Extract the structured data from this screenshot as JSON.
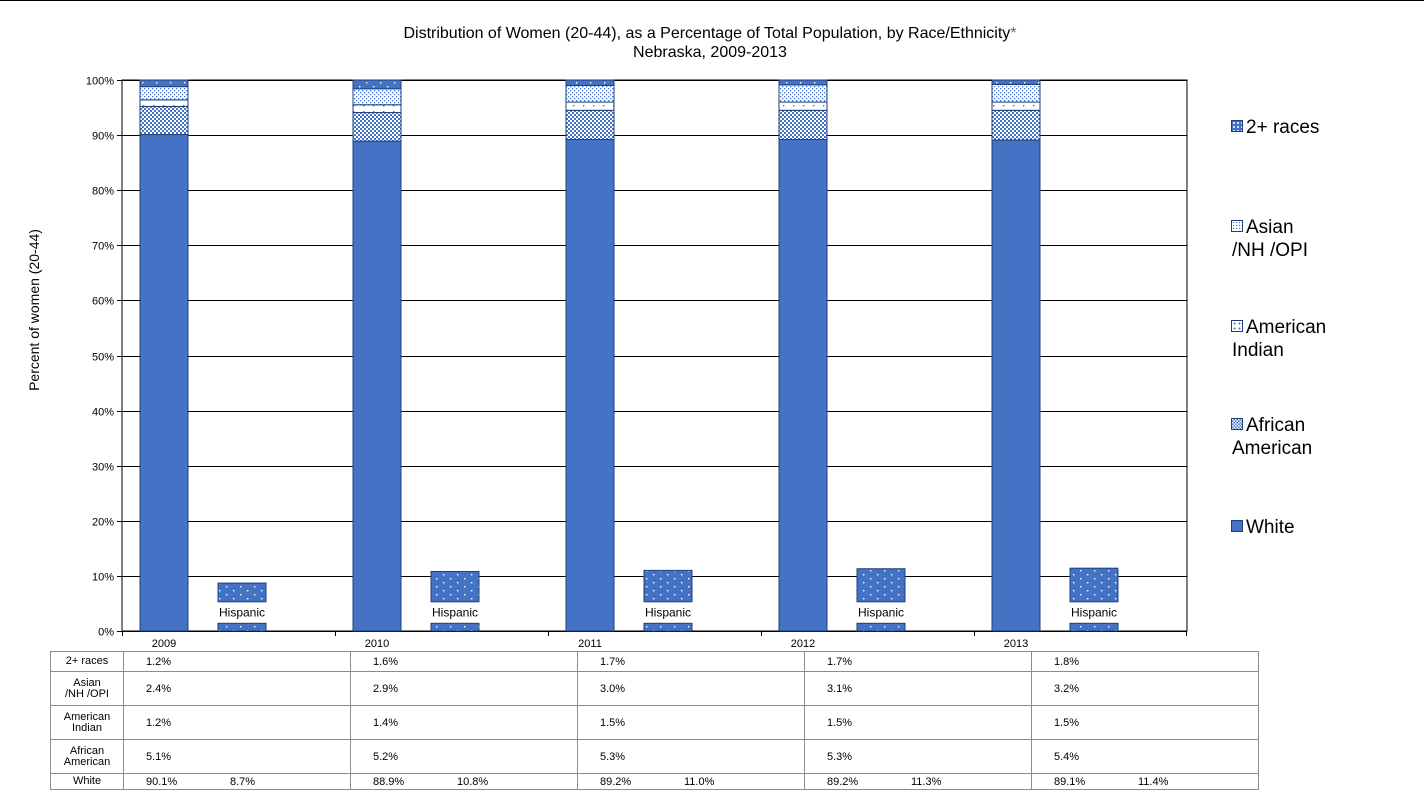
{
  "chart_data": {
    "type": "bar",
    "title": "Distribution of Women (20-44), as a Percentage of Total Population, by Race/Ethnicity",
    "title_marker": "*",
    "subtitle": "Nebraska, 2009-2013",
    "ylabel": "Percent of women (20-44)",
    "ylim": [
      0,
      100
    ],
    "yticks": [
      "0%",
      "10%",
      "20%",
      "30%",
      "40%",
      "50%",
      "60%",
      "70%",
      "80%",
      "90%",
      "100%"
    ],
    "categories": [
      "2009",
      "2010",
      "2011",
      "2012",
      "2013"
    ],
    "stacked": true,
    "series": [
      {
        "name": "White",
        "values": [
          90.1,
          88.9,
          89.2,
          89.2,
          89.1
        ]
      },
      {
        "name": "African American",
        "values": [
          5.1,
          5.2,
          5.3,
          5.3,
          5.4
        ]
      },
      {
        "name": "American Indian",
        "values": [
          1.2,
          1.4,
          1.5,
          1.5,
          1.5
        ]
      },
      {
        "name": "Asian /NH /OPI",
        "values": [
          2.4,
          2.9,
          3.0,
          3.1,
          3.2
        ]
      },
      {
        "name": "2+ races",
        "values": [
          1.2,
          1.6,
          1.7,
          1.7,
          1.8
        ]
      }
    ],
    "hispanic_values": [
      8.7,
      10.8,
      11.0,
      11.3,
      11.4
    ],
    "hispanic_label": "Hispanic",
    "grid": true,
    "legend_position": "right",
    "legend_order": [
      "2+ races",
      "Asian /NH /OPI",
      "American Indian",
      "African American",
      "White"
    ],
    "colors": {
      "white": "#4472c4",
      "bar_edge": "#1f3f7a",
      "pattern_bg": "#ffffff"
    }
  },
  "legend": [
    {
      "lines": [
        "2+ races"
      ]
    },
    {
      "lines": [
        "Asian",
        "/NH /OPI"
      ]
    },
    {
      "lines": [
        "American",
        "Indian"
      ]
    },
    {
      "lines": [
        "African",
        "American"
      ]
    },
    {
      "lines": [
        "White"
      ]
    }
  ],
  "table": {
    "rows": [
      {
        "label": [
          "2+ races"
        ],
        "values": [
          "1.2%",
          "1.6%",
          "1.7%",
          "1.7%",
          "1.8%"
        ]
      },
      {
        "label": [
          "Asian",
          "/NH /OPI"
        ],
        "values": [
          "2.4%",
          "2.9%",
          "3.0%",
          "3.1%",
          "3.2%"
        ]
      },
      {
        "label": [
          "American",
          "Indian"
        ],
        "values": [
          "1.2%",
          "1.4%",
          "1.5%",
          "1.5%",
          "1.5%"
        ]
      },
      {
        "label": [
          "African",
          "American"
        ],
        "values": [
          "5.1%",
          "5.2%",
          "5.3%",
          "5.3%",
          "5.4%"
        ]
      },
      {
        "label": [
          "White"
        ],
        "values": [
          "90.1%",
          "88.9%",
          "89.2%",
          "89.2%",
          "89.1%"
        ],
        "hispanic": [
          "8.7%",
          "10.8%",
          "11.0%",
          "11.3%",
          "11.4%"
        ]
      }
    ]
  }
}
